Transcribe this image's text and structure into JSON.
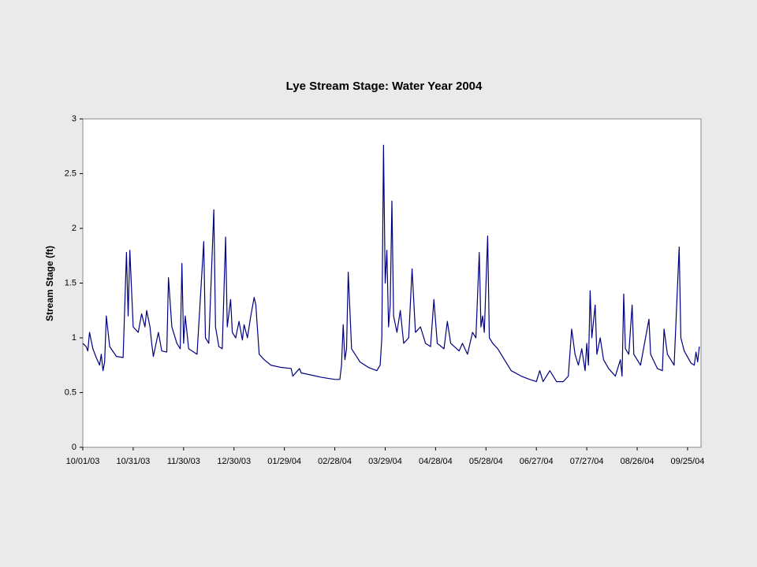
{
  "chart_data": {
    "type": "line",
    "title": "Lye Stream Stage: Water Year 2004",
    "y_label": "Stream Stage (ft)",
    "x": [
      "10/01/03",
      "10/03/03",
      "10/04/03",
      "10/05/03",
      "10/07/03",
      "10/09/03",
      "10/11/03",
      "10/12/03",
      "10/13/03",
      "10/14/03",
      "10/15/03",
      "10/17/03",
      "10/21/03",
      "10/25/03",
      "10/27/03",
      "10/28/03",
      "10/29/03",
      "10/31/03",
      "11/03/03",
      "11/05/03",
      "11/07/03",
      "11/08/03",
      "11/10/03",
      "11/11/03",
      "11/12/03",
      "11/15/03",
      "11/17/03",
      "11/20/03",
      "11/21/03",
      "11/23/03",
      "11/26/03",
      "11/28/03",
      "11/29/03",
      "11/30/03",
      "12/01/03",
      "12/03/03",
      "12/05/03",
      "12/08/03",
      "12/12/03",
      "12/13/03",
      "12/15/03",
      "12/18/03",
      "12/19/03",
      "12/21/03",
      "12/23/03",
      "12/25/03",
      "12/26/03",
      "12/28/03",
      "12/29/03",
      "12/31/03",
      "01/02/04",
      "01/04/04",
      "01/05/04",
      "01/07/04",
      "01/09/04",
      "01/11/04",
      "01/12/04",
      "01/14/04",
      "01/17/04",
      "01/21/04",
      "01/27/04",
      "02/02/04",
      "02/03/04",
      "02/07/04",
      "02/08/04",
      "02/14/04",
      "02/20/04",
      "02/28/04",
      "03/02/04",
      "03/03/04",
      "03/04/04",
      "03/05/04",
      "03/06/04",
      "03/07/04",
      "03/09/04",
      "03/14/04",
      "03/19/04",
      "03/24/04",
      "03/26/04",
      "03/27/04",
      "03/28/04",
      "03/29/04",
      "03/30/04",
      "03/31/04",
      "04/01/04",
      "04/02/04",
      "04/03/04",
      "04/05/04",
      "04/07/04",
      "04/09/04",
      "04/12/04",
      "04/14/04",
      "04/16/04",
      "04/19/04",
      "04/22/04",
      "04/25/04",
      "04/27/04",
      "04/29/04",
      "05/03/04",
      "05/05/04",
      "05/07/04",
      "05/12/04",
      "05/14/04",
      "05/17/04",
      "05/20/04",
      "05/22/04",
      "05/24/04",
      "05/25/04",
      "05/26/04",
      "05/27/04",
      "05/29/04",
      "05/30/04",
      "06/01/04",
      "06/04/04",
      "06/08/04",
      "06/12/04",
      "06/18/04",
      "06/23/04",
      "06/27/04",
      "06/29/04",
      "07/01/04",
      "07/05/04",
      "07/09/04",
      "07/13/04",
      "07/16/04",
      "07/18/04",
      "07/20/04",
      "07/22/04",
      "07/24/04",
      "07/26/04",
      "07/27/04",
      "07/28/04",
      "07/29/04",
      "07/30/04",
      "08/01/04",
      "08/02/04",
      "08/04/04",
      "08/06/04",
      "08/09/04",
      "08/13/04",
      "08/16/04",
      "08/17/04",
      "08/18/04",
      "08/19/04",
      "08/21/04",
      "08/23/04",
      "08/24/04",
      "08/28/04",
      "09/02/04",
      "09/03/04",
      "09/07/04",
      "09/10/04",
      "09/11/04",
      "09/13/04",
      "09/17/04",
      "09/20/04",
      "09/21/04",
      "09/23/04",
      "09/27/04",
      "09/29/04",
      "09/30/04",
      "10/01/04",
      "10/02/04"
    ],
    "series": [
      {
        "name": "Stream Stage",
        "color": "#000080",
        "values": [
          0.95,
          0.92,
          0.88,
          1.05,
          0.9,
          0.82,
          0.75,
          0.85,
          0.7,
          0.78,
          1.2,
          0.92,
          0.83,
          0.82,
          1.78,
          1.2,
          1.8,
          1.1,
          1.05,
          1.22,
          1.1,
          1.25,
          1.1,
          0.95,
          0.83,
          1.05,
          0.88,
          0.87,
          1.55,
          1.1,
          0.95,
          0.9,
          1.68,
          0.95,
          1.2,
          0.9,
          0.88,
          0.85,
          1.88,
          1.0,
          0.95,
          2.17,
          1.1,
          0.92,
          0.9,
          1.92,
          1.1,
          1.35,
          1.05,
          1.0,
          1.15,
          0.98,
          1.12,
          1.0,
          1.2,
          1.37,
          1.3,
          0.85,
          0.8,
          0.75,
          0.73,
          0.72,
          0.65,
          0.72,
          0.68,
          0.66,
          0.64,
          0.62,
          0.62,
          0.75,
          1.12,
          0.8,
          0.9,
          1.6,
          0.9,
          0.78,
          0.73,
          0.7,
          0.75,
          1.0,
          2.76,
          1.5,
          1.8,
          1.1,
          1.3,
          2.25,
          1.2,
          1.05,
          1.25,
          0.95,
          1.0,
          1.63,
          1.05,
          1.1,
          0.95,
          0.92,
          1.35,
          0.95,
          0.9,
          1.15,
          0.95,
          0.88,
          0.95,
          0.85,
          1.05,
          1.0,
          1.78,
          1.1,
          1.2,
          1.05,
          1.93,
          1.0,
          0.95,
          0.9,
          0.8,
          0.7,
          0.65,
          0.62,
          0.6,
          0.7,
          0.6,
          0.7,
          0.6,
          0.6,
          0.65,
          1.08,
          0.85,
          0.75,
          0.9,
          0.7,
          0.95,
          0.75,
          1.43,
          1.0,
          1.3,
          0.85,
          1.0,
          0.8,
          0.72,
          0.65,
          0.8,
          0.65,
          1.4,
          0.9,
          0.85,
          1.3,
          0.85,
          0.75,
          1.17,
          0.85,
          0.72,
          0.7,
          1.08,
          0.85,
          0.75,
          1.83,
          1.0,
          0.88,
          0.77,
          0.75,
          0.87,
          0.78,
          0.92
        ]
      }
    ],
    "xlim": [
      "10/01/03",
      "10/03/04"
    ],
    "xticks": [
      "10/01/03",
      "10/31/03",
      "11/30/03",
      "12/30/03",
      "01/29/04",
      "02/28/04",
      "03/29/04",
      "04/28/04",
      "05/28/04",
      "06/27/04",
      "07/27/04",
      "08/26/04",
      "09/25/04"
    ],
    "ylim": [
      0,
      3
    ],
    "yticks": [
      0,
      0.5,
      1,
      1.5,
      2,
      2.5,
      3
    ]
  }
}
